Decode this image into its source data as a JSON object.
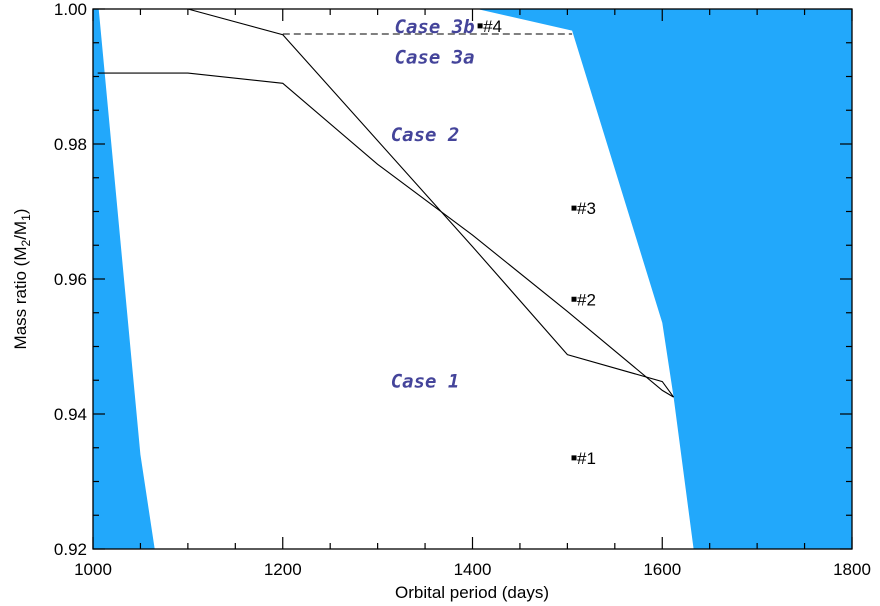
{
  "chart_data": {
    "type": "line",
    "xlabel": "Orbital period (days)",
    "ylabel": {
      "prefix": "Mass ratio (M",
      "sub1": "2",
      "mid": "/M",
      "sub2": "1",
      "suffix": ")"
    },
    "xlim": [
      1000,
      1800
    ],
    "ylim": [
      0.92,
      1.0
    ],
    "xticks": [
      1000,
      1200,
      1400,
      1600,
      1800
    ],
    "xtick_labels": [
      "1000",
      "1200",
      "1400",
      "1600",
      "1800"
    ],
    "yticks": [
      0.92,
      0.94,
      0.96,
      0.98,
      1.0
    ],
    "ytick_labels": [
      "0.92",
      "0.94",
      "0.96",
      "0.98",
      "1.00"
    ],
    "grid": false,
    "colors": {
      "excluded_fill": "#22a8fb",
      "case_text": "#44449a",
      "lines": "#000000"
    },
    "excluded_regions": [
      {
        "points": [
          [
            1000,
            1.0
          ],
          [
            1006,
            1.0
          ],
          [
            1050,
            0.934
          ],
          [
            1065,
            0.92
          ],
          [
            1000,
            0.92
          ]
        ]
      },
      {
        "points": [
          [
            1100,
            1.0
          ],
          [
            1800,
            1.0
          ],
          [
            1800,
            0.92
          ],
          [
            1633,
            0.92
          ],
          [
            1612,
            0.9425
          ],
          [
            1600,
            0.9535
          ],
          [
            1505,
            0.9968
          ],
          [
            1405,
            1.0
          ]
        ]
      }
    ],
    "series": [
      {
        "style": "solid",
        "points": [
          [
            1100,
            1.0
          ],
          [
            1200,
            0.9962
          ],
          [
            1300,
            0.9805
          ],
          [
            1400,
            0.9648
          ],
          [
            1500,
            0.9488
          ],
          [
            1600,
            0.9448
          ],
          [
            1612,
            0.9425
          ]
        ]
      },
      {
        "style": "solid",
        "points": [
          [
            1005,
            0.9905
          ],
          [
            1100,
            0.9905
          ],
          [
            1200,
            0.989
          ],
          [
            1300,
            0.977
          ],
          [
            1400,
            0.9665
          ],
          [
            1500,
            0.9552
          ],
          [
            1600,
            0.9435
          ],
          [
            1612,
            0.9425
          ]
        ]
      },
      {
        "style": "dashed",
        "points": [
          [
            1200,
            0.9963
          ],
          [
            1505,
            0.9963
          ]
        ]
      }
    ],
    "case_labels": [
      {
        "text": "Case 3b",
        "x": 1360,
        "y": 0.9975
      },
      {
        "text": "Case 3a",
        "x": 1360,
        "y": 0.993
      },
      {
        "text": "Case 2",
        "x": 1350,
        "y": 0.9815
      },
      {
        "text": "Case 1",
        "x": 1350,
        "y": 0.945
      }
    ],
    "points": [
      {
        "label": "#1",
        "x": 1507,
        "y": 0.9335
      },
      {
        "label": "#2",
        "x": 1507,
        "y": 0.957
      },
      {
        "label": "#3",
        "x": 1507,
        "y": 0.9705
      },
      {
        "label": "#4",
        "x": 1408,
        "y": 0.9975
      }
    ]
  }
}
